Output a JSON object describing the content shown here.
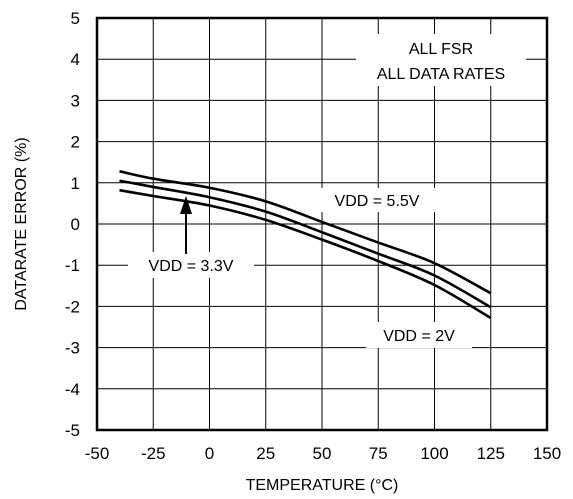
{
  "chart_data": {
    "type": "line",
    "xlabel": "TEMPERATURE (°C)",
    "ylabel": "DATARATE ERROR (%)",
    "xlim": [
      -50,
      150
    ],
    "ylim": [
      -5,
      5
    ],
    "x_ticks": [
      "-50",
      "-25",
      "0",
      "25",
      "50",
      "75",
      "100",
      "125",
      "150"
    ],
    "y_ticks": [
      "5",
      "4",
      "3",
      "2",
      "1",
      "0",
      "-1",
      "-2",
      "-3",
      "-4",
      "-5"
    ],
    "grid": true,
    "series": [
      {
        "name": "VDD = 5.5V",
        "x": [
          -40,
          -25,
          0,
          25,
          50,
          75,
          100,
          125
        ],
        "y": [
          1.28,
          1.1,
          0.88,
          0.55,
          0.05,
          -0.45,
          -0.95,
          -1.68
        ]
      },
      {
        "name": "VDD = 3.3V",
        "x": [
          -40,
          -25,
          0,
          25,
          50,
          75,
          100,
          125
        ],
        "y": [
          1.05,
          0.9,
          0.65,
          0.3,
          -0.2,
          -0.72,
          -1.25,
          -2.02
        ]
      },
      {
        "name": "VDD = 2V",
        "x": [
          -40,
          -25,
          0,
          25,
          50,
          75,
          100,
          125
        ],
        "y": [
          0.82,
          0.68,
          0.45,
          0.1,
          -0.38,
          -0.9,
          -1.48,
          -2.28
        ]
      }
    ],
    "annotations": {
      "box_line1": "ALL FSR",
      "box_line2": "ALL DATA RATES",
      "label_55": "VDD = 5.5V",
      "label_33": "VDD = 3.3V",
      "label_2": "VDD = 2V"
    }
  }
}
